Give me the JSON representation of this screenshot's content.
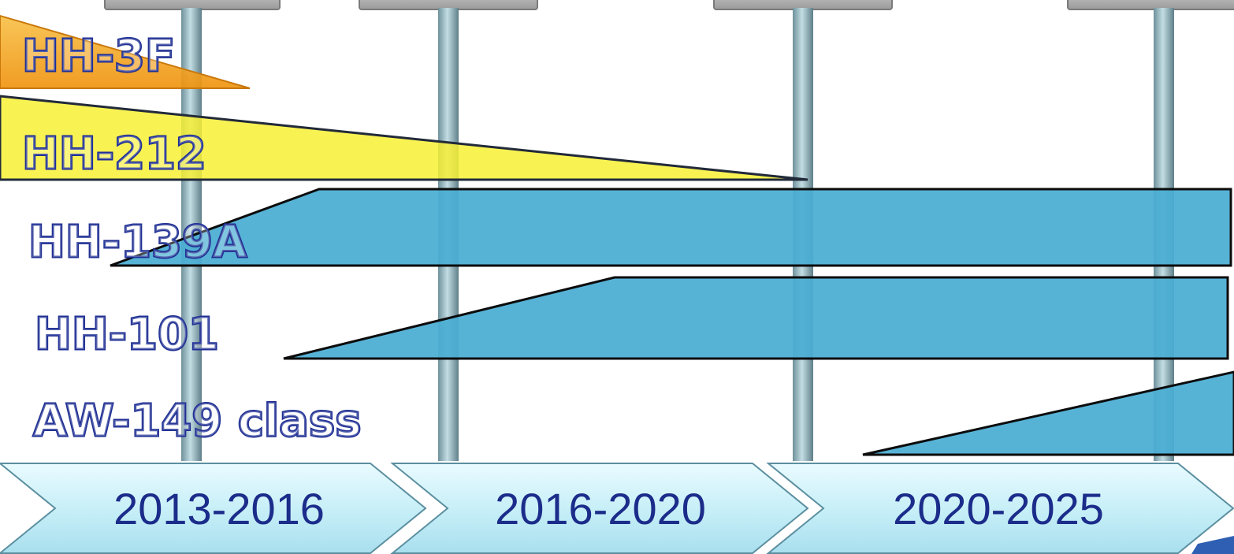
{
  "colors": {
    "orange": "#f3a21a",
    "yellow": "#f7f035",
    "blue": "#4aadd3",
    "text_blue": "#1f2f93",
    "pole": "#8fb3bd",
    "period_fill": "#dff6fb",
    "period_text": "#1b2c8a"
  },
  "periods": [
    {
      "label": "2013-2016"
    },
    {
      "label": "2016-2020"
    },
    {
      "label": "2020-2025"
    }
  ],
  "aircraft": [
    {
      "label": "HH-3F",
      "phase": "retiring",
      "color_key": "orange"
    },
    {
      "label": "HH-212",
      "phase": "retiring",
      "color_key": "yellow"
    },
    {
      "label": "HH-139A",
      "phase": "entering",
      "color_key": "blue"
    },
    {
      "label": "HH-101",
      "phase": "entering",
      "color_key": "blue"
    },
    {
      "label": "AW-149 class",
      "phase": "entering",
      "color_key": "blue"
    }
  ]
}
